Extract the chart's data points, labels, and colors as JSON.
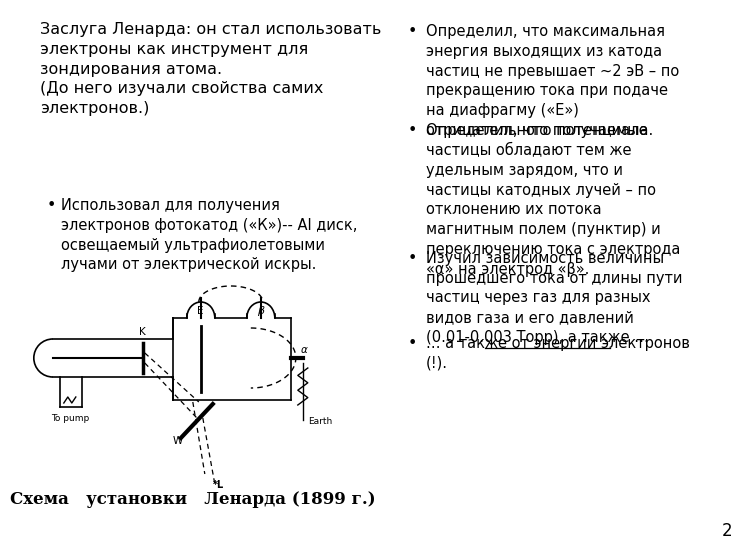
{
  "bg_color": "#ffffff",
  "title_text": "Заслуга Ленарда: он стал использовать\nэлектроны как инструмент для\nзондирования атома.\n(До него изучали свойства самих\nэлектронов.)",
  "left_bullet": "Использовал для получения\nэлектронов фотокатод («К»)-- Al диск,\nосвещаемый ультрафиолетовыми\nлучами от электрической искры.",
  "right_bullets": [
    "Определил, что максимальная\nэнергия выходящих из катода\nчастиц не превышает ~2 эВ – по\nпрекращению тока при подаче\nна диафрагму («Е»)\nотрицательного потенциала.",
    "Определил, что получаемые\nчастицы обладают тем же\nудельным зарядом, что и\nчастицы катодных лучей – по\nотклонению их потока\nмагнитным полем (пунктир) и\nпереключению тока с электрода\n«α» на электрод «β».",
    "Изучил зависимость величины\nпрошедшего тока от длины пути\nчастиц через газ для разных\nвидов газа и его давлений\n(0.01-0.003 Торр), а также …",
    "… а также от энергии электронов\n(!)."
  ],
  "caption": "Схема   установки   Ленарда (1899 г.)",
  "page_number": "2",
  "title_fontsize": 11.5,
  "body_fontsize": 10.5,
  "caption_fontsize": 12
}
